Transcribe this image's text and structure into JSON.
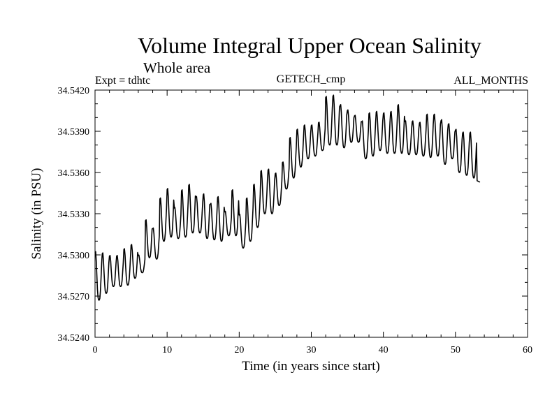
{
  "chart_data": {
    "type": "line",
    "title": "Volume Integral Upper Ocean Salinity",
    "subtitle": "Whole area",
    "annotation_left": "Expt = tdhtc",
    "annotation_center": "GETECH_cmp",
    "annotation_right": "ALL_MONTHS",
    "xlabel": "Time (in years since start)",
    "ylabel": "Salinity (in PSU)",
    "xlim": [
      0,
      60
    ],
    "ylim": [
      34.524,
      34.542
    ],
    "xticks": [
      "0",
      "10",
      "20",
      "30",
      "40",
      "50",
      "60"
    ],
    "yticks": [
      "34.5240",
      "34.5270",
      "34.5300",
      "34.5330",
      "34.5360",
      "34.5390",
      "34.5420"
    ],
    "series": [
      {
        "name": "Salinity",
        "description": "monthly values, annual cycle",
        "annual_cycle": {
          "years": [
            0,
            1,
            2,
            3,
            4,
            5,
            6,
            7,
            8,
            9,
            10,
            11,
            12,
            13,
            14,
            15,
            16,
            17,
            18,
            19,
            20,
            21,
            22,
            23,
            24,
            25,
            26,
            27,
            28,
            29,
            30,
            31,
            32,
            33,
            34,
            35,
            36,
            37,
            38,
            39,
            40,
            41,
            42,
            43,
            44,
            45,
            46,
            47,
            48,
            49,
            50,
            51,
            52
          ],
          "max": [
            34.5303,
            34.5302,
            34.53,
            34.53,
            34.5305,
            34.5308,
            34.53,
            34.5326,
            34.532,
            34.5342,
            34.5349,
            34.5335,
            34.5348,
            34.5352,
            34.5343,
            34.5345,
            34.5338,
            34.5343,
            34.5332,
            34.5348,
            34.533,
            34.5342,
            34.5352,
            34.5362,
            34.5363,
            34.536,
            34.5368,
            34.5386,
            34.5392,
            34.5395,
            34.5395,
            34.5397,
            34.5416,
            34.5417,
            34.541,
            34.5406,
            34.5402,
            34.5398,
            34.5404,
            34.5405,
            34.5404,
            34.5405,
            34.541,
            34.5398,
            34.5398,
            34.5397,
            34.5403,
            34.5403,
            34.5399,
            34.5396,
            34.5392,
            34.539,
            34.539
          ],
          "min": [
            34.5267,
            34.5272,
            34.5277,
            34.5277,
            34.5278,
            34.5283,
            34.5287,
            34.5298,
            34.5297,
            34.531,
            34.5313,
            34.5312,
            34.5313,
            34.5316,
            34.5316,
            34.5312,
            34.5311,
            34.531,
            34.5314,
            34.5314,
            34.5305,
            34.531,
            34.532,
            34.533,
            34.533,
            34.5336,
            34.5348,
            34.5356,
            34.5364,
            34.537,
            34.5372,
            34.5376,
            34.538,
            34.538,
            34.5378,
            34.5382,
            34.5382,
            34.537,
            34.5372,
            34.5376,
            34.5374,
            34.5374,
            34.5374,
            34.5373,
            34.5373,
            34.5372,
            34.5371,
            34.5372,
            34.5366,
            34.537,
            34.536,
            34.5358,
            34.5356
          ]
        },
        "end_value": 34.5354
      }
    ]
  }
}
